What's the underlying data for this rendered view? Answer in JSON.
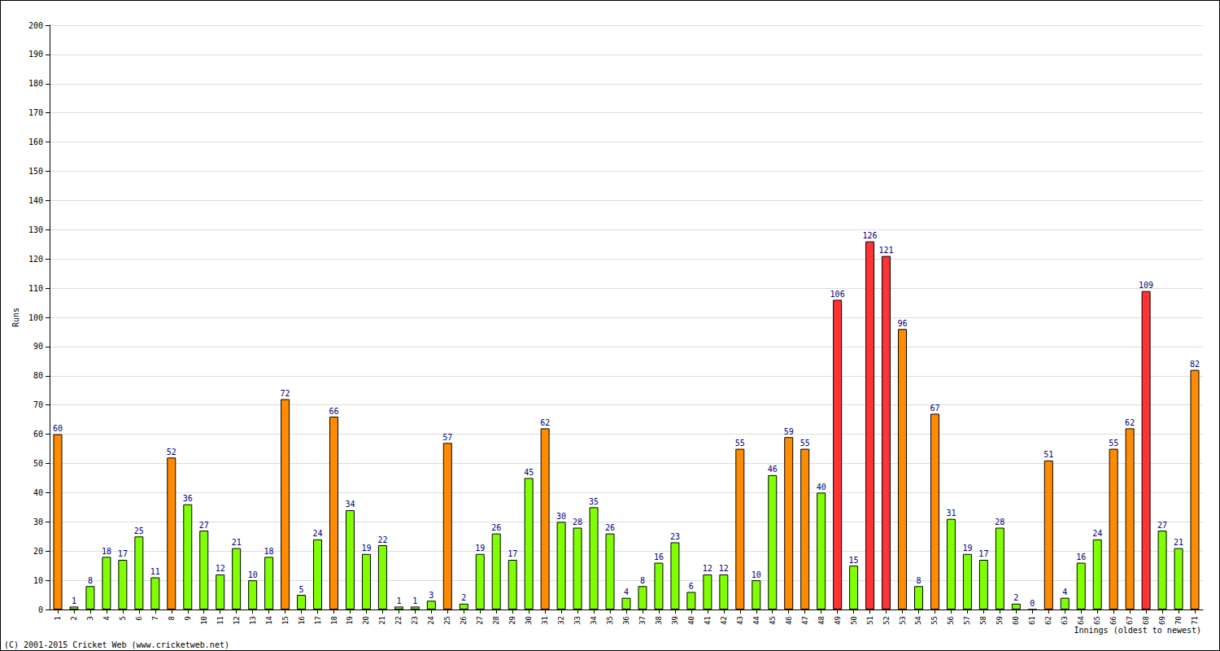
{
  "chart_data": {
    "type": "bar",
    "x_label": "Innings (oldest to newest)",
    "y_label": "Runs",
    "annotations": [
      "(C) 2001-2015 Cricket Web (www.cricketweb.net)"
    ],
    "categories": [
      "1",
      "2",
      "3",
      "4",
      "5",
      "6",
      "7",
      "8",
      "9",
      "10",
      "11",
      "12",
      "13",
      "14",
      "15",
      "16",
      "17",
      "18",
      "19",
      "20",
      "21",
      "22",
      "23",
      "24",
      "25",
      "26",
      "27",
      "28",
      "29",
      "30",
      "31",
      "32",
      "33",
      "34",
      "35",
      "36",
      "37",
      "38",
      "39",
      "40",
      "41",
      "42",
      "43",
      "44",
      "45",
      "46",
      "47",
      "48",
      "49",
      "50",
      "51",
      "52",
      "53",
      "54",
      "55",
      "56",
      "57",
      "58",
      "59",
      "60",
      "61",
      "62",
      "63",
      "64",
      "65",
      "66",
      "67",
      "68",
      "69",
      "70",
      "71"
    ],
    "values": [
      60,
      1,
      8,
      18,
      17,
      25,
      11,
      52,
      36,
      27,
      12,
      21,
      10,
      18,
      72,
      5,
      24,
      66,
      34,
      19,
      22,
      1,
      1,
      3,
      57,
      2,
      19,
      26,
      17,
      45,
      62,
      30,
      28,
      35,
      26,
      4,
      8,
      16,
      23,
      6,
      12,
      12,
      55,
      10,
      46,
      59,
      55,
      40,
      106,
      15,
      126,
      121,
      96,
      8,
      67,
      31,
      19,
      17,
      28,
      2,
      0,
      51,
      4,
      16,
      24,
      55,
      62,
      109,
      27,
      21,
      82
    ],
    "colors": [
      "#ff8c00",
      "#80ff00",
      "#80ff00",
      "#80ff00",
      "#80ff00",
      "#80ff00",
      "#80ff00",
      "#ff8c00",
      "#80ff00",
      "#80ff00",
      "#80ff00",
      "#80ff00",
      "#80ff00",
      "#80ff00",
      "#ff8c00",
      "#80ff00",
      "#80ff00",
      "#ff8c00",
      "#80ff00",
      "#80ff00",
      "#80ff00",
      "#80ff00",
      "#80ff00",
      "#80ff00",
      "#ff8c00",
      "#80ff00",
      "#80ff00",
      "#80ff00",
      "#80ff00",
      "#80ff00",
      "#ff8c00",
      "#80ff00",
      "#80ff00",
      "#80ff00",
      "#80ff00",
      "#80ff00",
      "#80ff00",
      "#80ff00",
      "#80ff00",
      "#80ff00",
      "#80ff00",
      "#80ff00",
      "#ff8c00",
      "#80ff00",
      "#80ff00",
      "#ff8c00",
      "#ff8c00",
      "#80ff00",
      "#ff3333",
      "#80ff00",
      "#ff3333",
      "#ff3333",
      "#ff8c00",
      "#80ff00",
      "#ff8c00",
      "#80ff00",
      "#80ff00",
      "#80ff00",
      "#80ff00",
      "#80ff00",
      "#80ff00",
      "#ff8c00",
      "#80ff00",
      "#80ff00",
      "#80ff00",
      "#ff8c00",
      "#ff8c00",
      "#ff3333",
      "#80ff00",
      "#80ff00",
      "#ff8c00"
    ],
    "ylim": [
      0,
      200
    ],
    "yticks": [
      0,
      10,
      20,
      30,
      40,
      50,
      60,
      70,
      80,
      90,
      100,
      110,
      120,
      130,
      140,
      150,
      160,
      170,
      180,
      190,
      200
    ],
    "grid": true,
    "data_labels": true
  }
}
